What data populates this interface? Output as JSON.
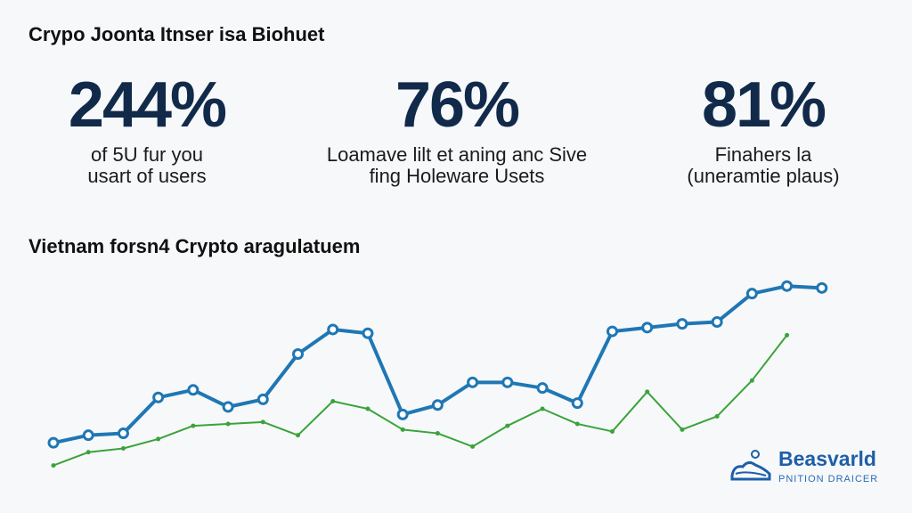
{
  "header": {
    "title": "Crypo Joonta Itnser isa Biohuet"
  },
  "stats": [
    {
      "value": "244%",
      "caption": "of 5U fur you\nusart of users"
    },
    {
      "value": "76%",
      "caption": "Loamave lilt et aning anc Sive\nfing Holeware Usets"
    },
    {
      "value": "81%",
      "caption": "Finahers la\n(uneramtie plaus)"
    }
  ],
  "chart_data": {
    "type": "line",
    "title": "Vietnam forsn4 Crypto aragulatuem",
    "xlabel": "",
    "ylabel": "",
    "grid": false,
    "legend": "none",
    "x": [
      1,
      2,
      3,
      4,
      5,
      6,
      7,
      8,
      9,
      10,
      11,
      12,
      13,
      14,
      15,
      16,
      17,
      18,
      19,
      20,
      21,
      22,
      23,
      24
    ],
    "ylim": [
      0,
      100
    ],
    "series": [
      {
        "color": "#1f77b4",
        "markers": true,
        "points": [
          [
            1,
            7
          ],
          [
            2,
            11
          ],
          [
            3,
            12
          ],
          [
            4,
            31
          ],
          [
            5,
            35
          ],
          [
            6,
            26
          ],
          [
            7,
            30
          ],
          [
            8,
            54
          ],
          [
            9,
            67
          ],
          [
            10,
            65
          ],
          [
            11,
            22
          ],
          [
            12,
            27
          ],
          [
            13,
            39
          ],
          [
            14,
            39
          ],
          [
            15,
            36
          ],
          [
            16,
            28
          ],
          [
            17,
            66
          ],
          [
            18,
            68
          ],
          [
            19,
            70
          ],
          [
            20,
            71
          ],
          [
            21,
            86
          ],
          [
            22,
            90
          ],
          [
            23,
            89
          ]
        ]
      },
      {
        "color": "#3aa33a",
        "markers": false,
        "points": [
          [
            1,
            -5
          ],
          [
            2,
            2
          ],
          [
            3,
            4
          ],
          [
            4,
            9
          ],
          [
            5,
            16
          ],
          [
            6,
            17
          ],
          [
            7,
            18
          ],
          [
            8,
            11
          ],
          [
            9,
            29
          ],
          [
            10,
            25
          ],
          [
            11,
            14
          ],
          [
            12,
            12
          ],
          [
            13,
            5
          ],
          [
            14,
            16
          ],
          [
            15,
            25
          ],
          [
            16,
            17
          ],
          [
            17,
            13
          ],
          [
            18,
            34
          ],
          [
            19,
            14
          ],
          [
            20,
            21
          ],
          [
            21,
            40
          ],
          [
            22,
            64
          ]
        ]
      }
    ]
  },
  "logo": {
    "brand": "Beasvarld",
    "tagline": "PNITION DRAICER"
  },
  "colors": {
    "accent": "#122a4a",
    "blue_series": "#1f77b4",
    "green_series": "#3aa33a",
    "logo": "#1d5fa8"
  }
}
